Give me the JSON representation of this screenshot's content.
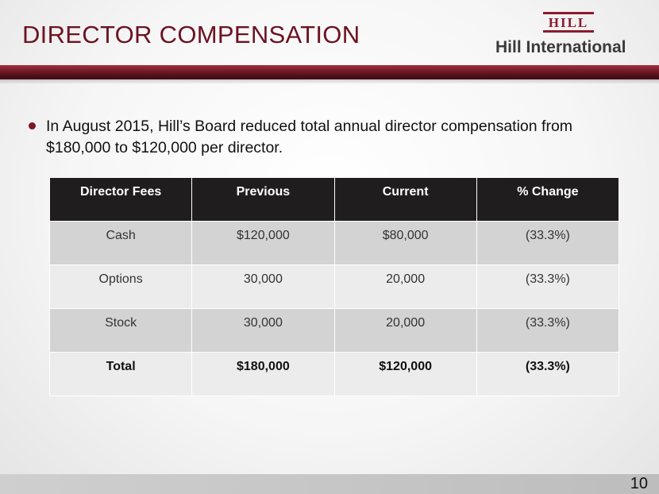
{
  "header": {
    "title": "DIRECTOR COMPENSATION",
    "logo": {
      "mark_text": "HILL",
      "name": "Hill International"
    }
  },
  "content": {
    "bullet_text": "In August 2015, Hill’s Board reduced total annual director compensation from $180,000 to $120,000 per director."
  },
  "table": {
    "headers": [
      "Director Fees",
      "Previous",
      "Current",
      "% Change"
    ],
    "rows": [
      [
        "Cash",
        "$120,000",
        "$80,000",
        "(33.3%)"
      ],
      [
        "Options",
        "30,000",
        "20,000",
        "(33.3%)"
      ],
      [
        "Stock",
        "30,000",
        "20,000",
        "(33.3%)"
      ],
      [
        "Total",
        "$180,000",
        "$120,000",
        "(33.3%)"
      ]
    ]
  },
  "footer": {
    "page_number": "10"
  },
  "colors": {
    "accent": "#6b1322",
    "header_bar": "#5a1220",
    "table_header_bg": "#1f1d1d",
    "row_dark": "#d3d3d3",
    "row_light": "#ececec"
  }
}
